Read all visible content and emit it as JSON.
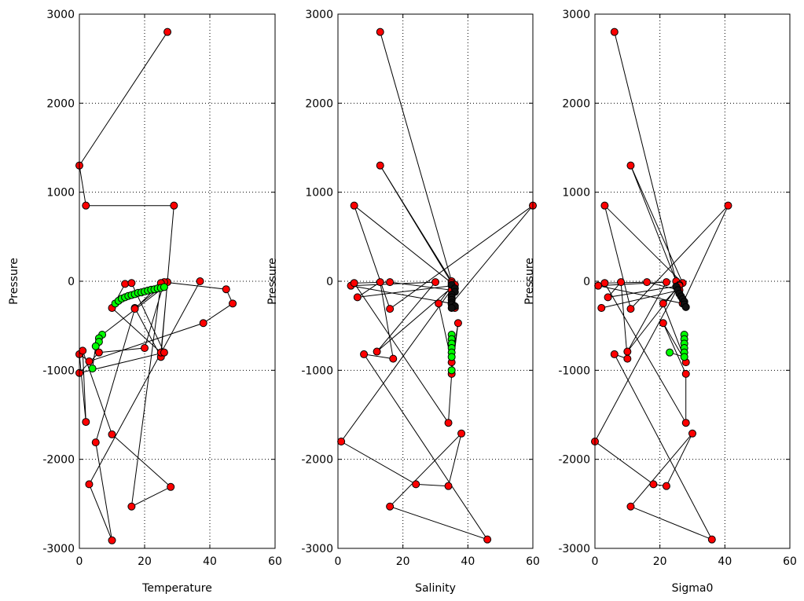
{
  "chart_data": [
    {
      "type": "scatter",
      "xlabel": "Temperature",
      "ylabel": "Pressure",
      "xlim": [
        0,
        60
      ],
      "ylim": [
        -3000,
        3000
      ],
      "xticks": [
        0,
        20,
        40,
        60
      ],
      "yticks": [
        -3000,
        -2000,
        -1000,
        0,
        1000,
        2000,
        3000
      ],
      "grid": true,
      "series": [
        {
          "color": "#ff0000",
          "connected": true,
          "x": [
            27,
            0,
            2,
            29,
            25,
            17,
            27,
            25,
            10,
            14,
            16,
            26,
            0,
            6,
            20,
            26,
            45,
            47,
            38,
            3,
            0,
            2,
            1,
            10,
            28,
            16,
            25,
            17,
            5,
            10,
            3,
            37
          ],
          "y": [
            2800,
            1300,
            850,
            850,
            -850,
            -300,
            -10,
            -800,
            -300,
            -30,
            -20,
            -800,
            -1030,
            -800,
            -750,
            -10,
            -90,
            -250,
            -470,
            -900,
            -820,
            -1580,
            -780,
            -1720,
            -2310,
            -2530,
            -20,
            -310,
            -1810,
            -2910,
            -2280,
            0
          ]
        },
        {
          "color": "#00ff00",
          "connected": true,
          "x": [
            11,
            12,
            13,
            14,
            15,
            16,
            17,
            18,
            19,
            20,
            21,
            22,
            23,
            24,
            25,
            26,
            7,
            6,
            6,
            5,
            4
          ],
          "y": [
            -250,
            -220,
            -195,
            -180,
            -165,
            -155,
            -145,
            -130,
            -125,
            -115,
            -105,
            -95,
            -90,
            -80,
            -75,
            -65,
            -600,
            -640,
            -680,
            -730,
            -980
          ]
        }
      ]
    },
    {
      "type": "scatter",
      "xlabel": "Salinity",
      "ylabel": "Pressure",
      "xlim": [
        0,
        60
      ],
      "ylim": [
        -3000,
        3000
      ],
      "xticks": [
        0,
        20,
        40,
        60
      ],
      "yticks": [
        -3000,
        -2000,
        -1000,
        0,
        1000,
        2000,
        3000
      ],
      "grid": true,
      "series": [
        {
          "color": "#ff0000",
          "connected": true,
          "x": [
            13,
            35,
            13,
            35,
            5,
            16,
            60,
            35,
            4,
            30,
            12,
            36,
            1,
            24,
            34,
            38,
            16,
            46,
            8,
            17,
            13,
            6,
            35,
            31,
            35,
            37,
            35,
            34,
            5,
            16,
            35,
            36
          ],
          "y": [
            2800,
            0,
            1300,
            -20,
            850,
            -310,
            850,
            -250,
            -50,
            -10,
            -790,
            -40,
            -1800,
            -2280,
            -2300,
            -1710,
            -2530,
            -2900,
            -820,
            -870,
            -10,
            -180,
            -50,
            -250,
            -910,
            -470,
            -1040,
            -1590,
            -20,
            -10,
            -100,
            -300
          ]
        },
        {
          "color": "#00ff00",
          "connected": true,
          "x": [
            35,
            35,
            35,
            35,
            35,
            35,
            35
          ],
          "y": [
            -600,
            -650,
            -700,
            -750,
            -800,
            -850,
            -1000
          ]
        },
        {
          "color": "#111111",
          "connected": true,
          "x": [
            35,
            36,
            36,
            35,
            35,
            35,
            35,
            35,
            36,
            35
          ],
          "y": [
            -40,
            -80,
            -120,
            -150,
            -180,
            -210,
            -240,
            -260,
            -280,
            -300
          ]
        }
      ]
    },
    {
      "type": "scatter",
      "xlabel": "Sigma0",
      "ylabel": "Pressure",
      "xlim": [
        0,
        60
      ],
      "ylim": [
        -3000,
        3000
      ],
      "xticks": [
        0,
        20,
        40,
        60
      ],
      "yticks": [
        -3000,
        -2000,
        -1000,
        0,
        1000,
        2000,
        3000
      ],
      "grid": true,
      "series": [
        {
          "color": "#ff0000",
          "connected": true,
          "x": [
            6,
            25,
            11,
            27,
            3,
            11,
            41,
            27,
            1,
            22,
            10,
            26,
            0,
            18,
            22,
            30,
            11,
            36,
            6,
            10,
            8,
            4,
            26,
            21,
            28,
            21,
            28,
            28,
            3,
            16,
            26,
            2
          ],
          "y": [
            2800,
            0,
            1300,
            -20,
            850,
            -310,
            850,
            -250,
            -50,
            -10,
            -790,
            -40,
            -1800,
            -2280,
            -2300,
            -1710,
            -2530,
            -2900,
            -820,
            -870,
            -10,
            -180,
            -50,
            -250,
            -910,
            -470,
            -1040,
            -1590,
            -20,
            -10,
            -100,
            -300
          ]
        },
        {
          "color": "#00ff00",
          "connected": true,
          "x": [
            27.5,
            27.5,
            27.5,
            27.5,
            27.5,
            27.5,
            23
          ],
          "y": [
            -600,
            -650,
            -700,
            -750,
            -800,
            -850,
            -800
          ]
        },
        {
          "color": "#111111",
          "connected": true,
          "x": [
            25,
            25.5,
            26,
            26.5,
            27,
            27.5,
            27.5,
            28
          ],
          "y": [
            -60,
            -100,
            -140,
            -170,
            -200,
            -230,
            -260,
            -290
          ]
        }
      ]
    }
  ]
}
